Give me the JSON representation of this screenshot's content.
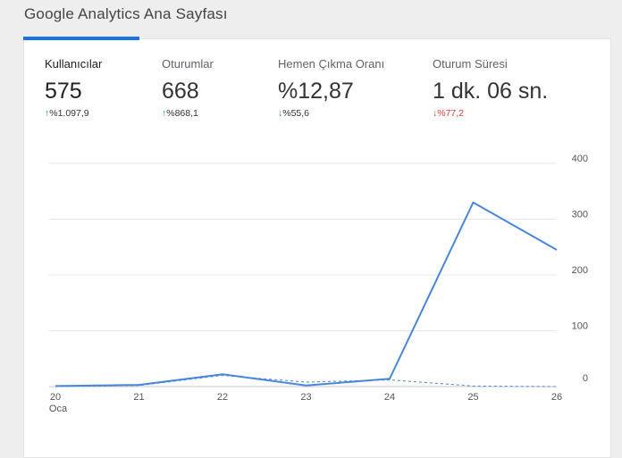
{
  "page": {
    "title": "Google Analytics Ana Sayfası"
  },
  "metrics": [
    {
      "label": "Kullanıcılar",
      "value": "575",
      "change": "%1.097,9",
      "direction": "up",
      "trend": "positive"
    },
    {
      "label": "Oturumlar",
      "value": "668",
      "change": "%868,1",
      "direction": "up",
      "trend": "positive"
    },
    {
      "label": "Hemen Çıkma Oranı",
      "value": "%12,87",
      "change": "%55,6",
      "direction": "down",
      "trend": "positive"
    },
    {
      "label": "Oturum Süresi",
      "value": "1 dk. 06 sn.",
      "change": "%77,2",
      "direction": "down",
      "trend": "negative"
    }
  ],
  "colors": {
    "accent": "#1a73e8",
    "line": "#4a86d8",
    "positive": "#0f9d58",
    "negative": "#db4437"
  },
  "chart_data": {
    "type": "line",
    "categories": [
      "20",
      "21",
      "22",
      "23",
      "24",
      "25",
      "26"
    ],
    "month_label": "Oca",
    "series": [
      {
        "values": [
          1,
          3,
          22,
          2,
          14,
          330,
          245
        ],
        "style": "solid"
      },
      {
        "values": [
          0,
          2,
          20,
          8,
          12,
          1,
          0
        ],
        "style": "dashed"
      }
    ],
    "y_ticks": [
      "0",
      "100",
      "200",
      "300",
      "400"
    ],
    "ylim": [
      0,
      400
    ],
    "grid": true
  }
}
